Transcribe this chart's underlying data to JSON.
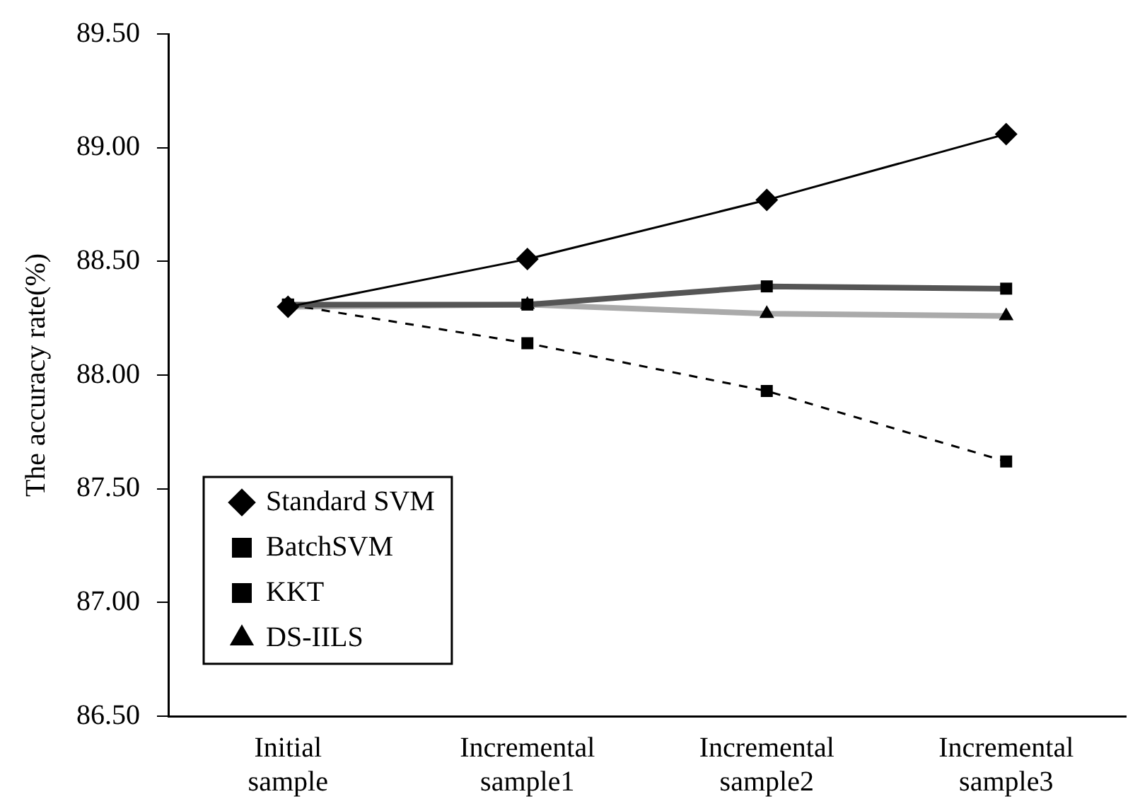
{
  "chart_data": {
    "type": "line",
    "ylabel": "The accuracy rate(%)",
    "categories": [
      "Initial sample",
      "Incremental sample1",
      "Incremental sample2",
      "Incremental sample3"
    ],
    "ylim": [
      86.5,
      89.5
    ],
    "yticks": [
      {
        "value": 86.5,
        "label": "86.50"
      },
      {
        "value": 87,
        "label": "87.00"
      },
      {
        "value": 87.5,
        "label": "87.50"
      },
      {
        "value": 88,
        "label": "88.00"
      },
      {
        "value": 88.5,
        "label": "88.50"
      },
      {
        "value": 89,
        "label": "89.00"
      },
      {
        "value": 89.5,
        "label": "89.50"
      }
    ],
    "grid": false,
    "legend": "bottom left",
    "series": [
      {
        "name": "Standard SVM",
        "color": "#000000",
        "marker": "diamond",
        "line_style": "solid",
        "values": [
          88.3,
          88.51,
          88.77,
          89.06
        ]
      },
      {
        "name": "BatchSVM",
        "color": "#555555",
        "marker": "square",
        "line_style": "solid",
        "values": [
          88.31,
          88.31,
          88.39,
          88.38
        ]
      },
      {
        "name": "KKT",
        "color": "#000000",
        "marker": "square",
        "line_style": "dashed",
        "values": [
          88.31,
          88.14,
          87.93,
          87.62
        ]
      },
      {
        "name": "DS-IILS",
        "color": "#aaaaaa",
        "marker": "triangle",
        "line_style": "solid",
        "values": [
          88.3,
          88.31,
          88.27,
          88.26
        ]
      }
    ]
  }
}
